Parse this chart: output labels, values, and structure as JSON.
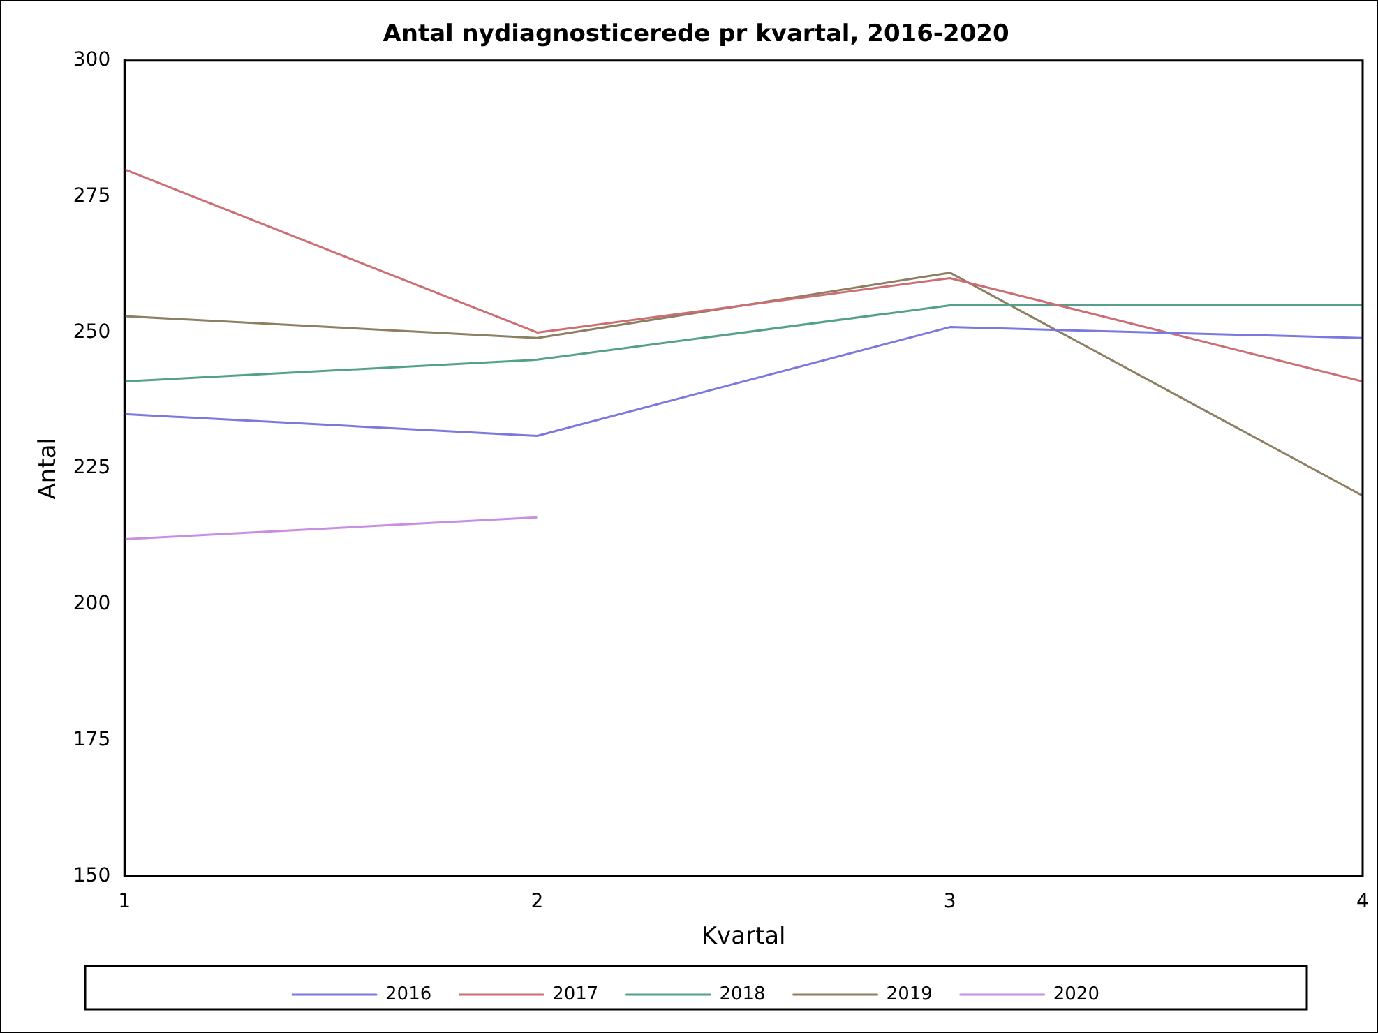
{
  "chart_data": {
    "type": "line",
    "title": "Antal nydiagnosticerede pr kvartal, 2016-2020",
    "xlabel": "Kvartal",
    "ylabel": "Antal",
    "x": [
      1,
      2,
      3,
      4
    ],
    "xlim": [
      1,
      4
    ],
    "xticks": [
      1,
      2,
      3,
      4
    ],
    "ylim": [
      150,
      300
    ],
    "yticks": [
      150,
      175,
      200,
      225,
      250,
      275,
      300
    ],
    "grid": false,
    "legend": "bottom",
    "marker": "none",
    "line_style": "solid",
    "series": [
      {
        "name": "2016",
        "color": "#7b78e0",
        "values": [
          235,
          231,
          251,
          249
        ]
      },
      {
        "name": "2017",
        "color": "#cc6e74",
        "values": [
          280,
          250,
          260,
          241
        ]
      },
      {
        "name": "2018",
        "color": "#55a08c",
        "values": [
          241,
          245,
          255,
          255
        ]
      },
      {
        "name": "2019",
        "color": "#8c7f62",
        "values": [
          253,
          249,
          261,
          220
        ]
      },
      {
        "name": "2020",
        "color": "#c88ee0",
        "values": [
          212,
          216,
          null,
          null
        ]
      }
    ]
  }
}
